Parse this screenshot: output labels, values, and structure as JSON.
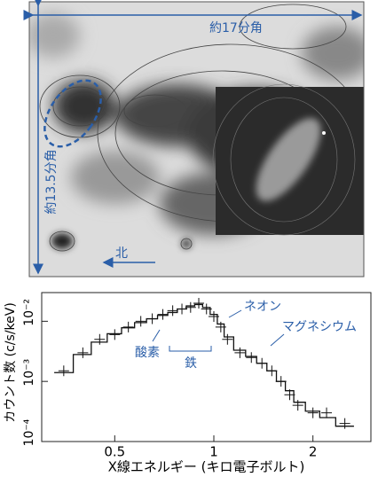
{
  "image": {
    "width_label": "約17分角",
    "height_label": "約13.5分角",
    "north_label": "北"
  },
  "chart_data": {
    "type": "scatter",
    "x": [
      0.35,
      0.4,
      0.45,
      0.5,
      0.55,
      0.6,
      0.65,
      0.7,
      0.75,
      0.8,
      0.85,
      0.9,
      0.95,
      1.0,
      1.05,
      1.1,
      1.2,
      1.3,
      1.4,
      1.5,
      1.6,
      1.7,
      1.8,
      2.0,
      2.2,
      2.5
    ],
    "series": [
      {
        "color": "#111111",
        "marker": "+",
        "values": [
          0.0015,
          0.003,
          0.005,
          0.006,
          0.008,
          0.01,
          0.011,
          0.013,
          0.015,
          0.016,
          0.017,
          0.02,
          0.016,
          0.012,
          0.008,
          0.005,
          0.003,
          0.0025,
          0.002,
          0.0015,
          0.001,
          0.0006,
          0.0004,
          0.0003,
          0.0003,
          0.0002
        ]
      },
      {
        "color": "#111111",
        "marker": "step",
        "values": [
          0.0014,
          0.0028,
          0.0045,
          0.0062,
          0.0078,
          0.0095,
          0.011,
          0.0125,
          0.014,
          0.016,
          0.018,
          0.019,
          0.017,
          0.013,
          0.009,
          0.0055,
          0.0033,
          0.0026,
          0.002,
          0.0015,
          0.001,
          0.0007,
          0.00045,
          0.00032,
          0.00025,
          0.00018
        ]
      }
    ],
    "xlabel": "X線エネルギー (キロ電子ボルト)",
    "ylabel": "カウント数 (c/s/keV)",
    "xscale": "log",
    "yscale": "log",
    "xlim": [
      0.3,
      3
    ],
    "ylim": [
      0.0001,
      0.03
    ],
    "xticks": [
      0.5,
      1,
      2
    ],
    "yticks": [
      {
        "value": 0.0001,
        "label": "10⁻⁴"
      },
      {
        "value": 0.001,
        "label": "10⁻³"
      },
      {
        "value": 0.01,
        "label": "10⁻²"
      }
    ],
    "annotations": [
      "ネオン",
      "マグネシウム",
      "酸素",
      "鉄"
    ]
  }
}
